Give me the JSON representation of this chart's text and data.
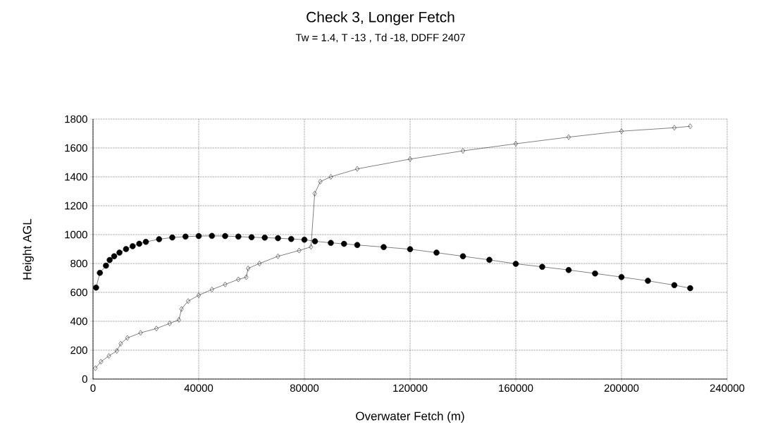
{
  "chart_data": {
    "type": "line",
    "title": "Check 3, Longer Fetch",
    "subtitle": "Tw = 1.4, T -13 , Td -18,  DDFF 2407",
    "xlabel": "Overwater Fetch (m)",
    "ylabel": "Height  AGL",
    "xlim": [
      0,
      240000
    ],
    "xticks": [
      0,
      40000,
      80000,
      120000,
      160000,
      200000,
      240000
    ],
    "ylim": [
      0,
      1800
    ],
    "yticks": [
      0,
      200,
      400,
      600,
      800,
      1000,
      1200,
      1400,
      1600,
      1800
    ],
    "grid": true,
    "line_style": "solid",
    "series": [
      {
        "color": "#000000",
        "marker": "circle",
        "x": [
          1150,
          2600,
          4900,
          6300,
          8000,
          10000,
          12500,
          15000,
          17500,
          20000,
          25000,
          30000,
          35000,
          40000,
          45000,
          50000,
          55000,
          60000,
          65000,
          70000,
          75000,
          80000,
          84000,
          90000,
          95000,
          100000,
          110000,
          120000,
          130000,
          140000,
          150000,
          160000,
          170000,
          180000,
          190000,
          200000,
          210000,
          220000,
          226000
        ],
        "values": [
          633,
          735,
          785,
          824,
          850,
          875,
          900,
          920,
          937,
          950,
          968,
          980,
          986,
          990,
          991,
          990,
          986,
          982,
          979,
          975,
          970,
          965,
          954,
          943,
          936,
          928,
          914,
          899,
          875,
          850,
          825,
          798,
          777,
          755,
          731,
          706,
          680,
          650,
          629
        ]
      },
      {
        "color": "#000000",
        "marker": "diamond",
        "x": [
          900,
          3000,
          6000,
          9000,
          10500,
          13000,
          18000,
          24000,
          29000,
          32500,
          33500,
          36000,
          40000,
          45000,
          50000,
          55000,
          58000,
          58700,
          63000,
          70000,
          78000,
          82500,
          83900,
          86000,
          90000,
          100000,
          120000,
          140000,
          160000,
          180000,
          200000,
          220000,
          226000
        ],
        "values": [
          75,
          120,
          160,
          195,
          245,
          285,
          320,
          350,
          385,
          410,
          485,
          540,
          580,
          620,
          655,
          690,
          705,
          766,
          800,
          850,
          890,
          915,
          1284,
          1367,
          1400,
          1455,
          1523,
          1580,
          1629,
          1675,
          1716,
          1740,
          1750
        ]
      }
    ]
  }
}
